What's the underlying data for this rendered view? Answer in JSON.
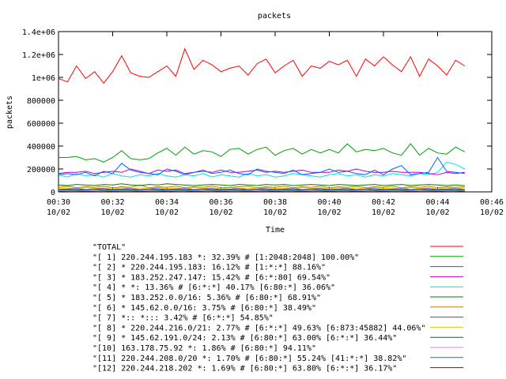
{
  "chart_data": {
    "type": "line",
    "title": "packets",
    "xlabel": "Time",
    "ylabel": "packets",
    "xlim": [
      "00:30",
      "00:46"
    ],
    "ylim": [
      0,
      1400000
    ],
    "x_ticks": [
      {
        "time": "00:30",
        "date": "10/02"
      },
      {
        "time": "00:32",
        "date": "10/02"
      },
      {
        "time": "00:34",
        "date": "10/02"
      },
      {
        "time": "00:36",
        "date": "10/02"
      },
      {
        "time": "00:38",
        "date": "10/02"
      },
      {
        "time": "00:40",
        "date": "10/02"
      },
      {
        "time": "00:42",
        "date": "10/02"
      },
      {
        "time": "00:44",
        "date": "10/02"
      },
      {
        "time": "00:46",
        "date": "10/02"
      }
    ],
    "y_ticks": [
      "0",
      "200000",
      "400000",
      "600000",
      "800000",
      "1e+06",
      "1.2e+06",
      "1.4e+06"
    ],
    "y_tick_values": [
      0,
      200000,
      400000,
      600000,
      800000,
      1000000,
      1200000,
      1400000
    ],
    "grid": false,
    "legend_position": "bottom",
    "x": [
      "00:30",
      "00:30:20",
      "00:30:40",
      "00:31",
      "00:31:20",
      "00:31:40",
      "00:32",
      "00:32:20",
      "00:32:40",
      "00:33",
      "00:33:20",
      "00:33:40",
      "00:34",
      "00:34:20",
      "00:34:40",
      "00:35",
      "00:35:20",
      "00:35:40",
      "00:36",
      "00:36:20",
      "00:36:40",
      "00:37",
      "00:37:20",
      "00:37:40",
      "00:38",
      "00:38:20",
      "00:38:40",
      "00:39",
      "00:39:20",
      "00:39:40",
      "00:40",
      "00:40:20",
      "00:40:40",
      "00:41",
      "00:41:20",
      "00:41:40",
      "00:42",
      "00:42:20",
      "00:42:40",
      "00:43",
      "00:43:20",
      "00:43:40",
      "00:44",
      "00:44:20",
      "00:44:40",
      "00:45"
    ],
    "series": [
      {
        "name": "\"TOTAL\"",
        "color": "#ff0000",
        "values": [
          990000,
          960000,
          1100000,
          990000,
          1050000,
          950000,
          1050000,
          1190000,
          1040000,
          1010000,
          1000000,
          1050000,
          1100000,
          1010000,
          1250000,
          1070000,
          1150000,
          1110000,
          1050000,
          1080000,
          1100000,
          1020000,
          1120000,
          1160000,
          1040000,
          1100000,
          1150000,
          1010000,
          1100000,
          1080000,
          1140000,
          1110000,
          1150000,
          1010000,
          1160000,
          1100000,
          1180000,
          1110000,
          1050000,
          1180000,
          1010000,
          1160000,
          1100000,
          1020000,
          1150000,
          1100000
        ]
      },
      {
        "name": "\"[ 1] 220.244.195.183 *: 32.39% # [1:2048:2048] 100.00%\"",
        "color": "#00a000",
        "values": [
          300000,
          300000,
          310000,
          280000,
          290000,
          260000,
          300000,
          360000,
          290000,
          280000,
          290000,
          340000,
          380000,
          320000,
          390000,
          330000,
          360000,
          350000,
          310000,
          370000,
          380000,
          330000,
          370000,
          390000,
          320000,
          360000,
          380000,
          330000,
          370000,
          340000,
          370000,
          340000,
          420000,
          350000,
          370000,
          360000,
          380000,
          340000,
          320000,
          420000,
          320000,
          380000,
          340000,
          330000,
          390000,
          350000
        ]
      },
      {
        "name": "\"[ 2] * 220.244.195.183: 16.12% # [1:*:*] 88.16%\"",
        "color": "#0060ff",
        "values": [
          150000,
          160000,
          150000,
          170000,
          140000,
          180000,
          160000,
          250000,
          190000,
          170000,
          160000,
          150000,
          200000,
          180000,
          150000,
          170000,
          190000,
          160000,
          170000,
          190000,
          160000,
          150000,
          200000,
          180000,
          170000,
          160000,
          190000,
          150000,
          160000,
          170000,
          200000,
          170000,
          180000,
          160000,
          150000,
          190000,
          150000,
          200000,
          230000,
          150000,
          160000,
          170000,
          300000,
          180000,
          170000,
          160000
        ]
      },
      {
        "name": "\"[ 3] * 183.252.247.147: 15.42% # [6:*:80] 69.54%\"",
        "color": "#c000c0",
        "values": [
          160000,
          170000,
          170000,
          180000,
          160000,
          170000,
          180000,
          170000,
          200000,
          180000,
          160000,
          190000,
          180000,
          190000,
          160000,
          170000,
          180000,
          170000,
          190000,
          170000,
          170000,
          180000,
          190000,
          170000,
          180000,
          170000,
          180000,
          190000,
          170000,
          170000,
          170000,
          190000,
          180000,
          200000,
          180000,
          170000,
          170000,
          180000,
          170000,
          170000,
          170000,
          160000,
          150000,
          170000,
          160000,
          170000
        ]
      },
      {
        "name": "\"[ 4] * *: 13.36% # [6:*:*] 40.17% [6:80:*] 36.06%\"",
        "color": "#00e0e0",
        "values": [
          150000,
          130000,
          160000,
          140000,
          150000,
          130000,
          160000,
          140000,
          130000,
          150000,
          140000,
          160000,
          140000,
          130000,
          150000,
          140000,
          160000,
          130000,
          150000,
          140000,
          130000,
          160000,
          140000,
          150000,
          130000,
          140000,
          160000,
          150000,
          140000,
          130000,
          150000,
          160000,
          140000,
          150000,
          130000,
          150000,
          140000,
          160000,
          150000,
          140000,
          160000,
          150000,
          170000,
          260000,
          240000,
          200000
        ]
      },
      {
        "name": "\"[ 5] * 183.252.0.0/16: 5.36% # [6:80:*] 68.91%\"",
        "color": "#008000",
        "values": [
          60000,
          55000,
          65000,
          60000,
          55000,
          65000,
          60000,
          70000,
          60000,
          55000,
          65000,
          60000,
          70000,
          65000,
          60000,
          55000,
          60000,
          65000,
          60000,
          55000,
          65000,
          60000,
          55000,
          65000,
          60000,
          65000,
          55000,
          60000,
          65000,
          60000,
          55000,
          65000,
          60000,
          55000,
          60000,
          65000,
          55000,
          60000,
          65000,
          55000,
          60000,
          65000,
          60000,
          55000,
          60000,
          55000
        ]
      },
      {
        "name": "\"[ 6] * 145.62.0.0/16: 3.75% # [6:80:*] 38.49%\"",
        "color": "#c08000",
        "values": [
          40000,
          50000,
          35000,
          45000,
          40000,
          50000,
          35000,
          45000,
          40000,
          60000,
          35000,
          45000,
          40000,
          50000,
          35000,
          45000,
          40000,
          50000,
          35000,
          40000,
          45000,
          50000,
          35000,
          45000,
          40000,
          50000,
          35000,
          45000,
          40000,
          50000,
          35000,
          45000,
          40000,
          50000,
          35000,
          45000,
          40000,
          50000,
          35000,
          45000,
          40000,
          50000,
          35000,
          45000,
          40000,
          45000
        ]
      },
      {
        "name": "\"[ 7] *:: *::: 3.42% # [6:*:*] 54.85%\"",
        "color": "#4040ff",
        "values": [
          20000,
          25000,
          30000,
          20000,
          25000,
          30000,
          20000,
          25000,
          30000,
          20000,
          25000,
          30000,
          20000,
          25000,
          30000,
          20000,
          25000,
          30000,
          20000,
          25000,
          30000,
          20000,
          25000,
          30000,
          20000,
          25000,
          30000,
          20000,
          25000,
          30000,
          20000,
          25000,
          30000,
          20000,
          25000,
          30000,
          20000,
          25000,
          30000,
          20000,
          25000,
          30000,
          20000,
          25000,
          30000,
          20000
        ]
      },
      {
        "name": "\"[ 8] * 220.244.216.0/21: 2.77% # [6:*:*] 49.63% [6:873:45882] 44.06%\"",
        "color": "#ffc000",
        "values": [
          30000,
          35000,
          25000,
          40000,
          30000,
          35000,
          25000,
          40000,
          30000,
          35000,
          25000,
          40000,
          30000,
          35000,
          25000,
          40000,
          30000,
          35000,
          25000,
          40000,
          30000,
          35000,
          25000,
          40000,
          30000,
          35000,
          25000,
          40000,
          30000,
          35000,
          25000,
          40000,
          30000,
          35000,
          25000,
          40000,
          30000,
          35000,
          25000,
          40000,
          30000,
          35000,
          25000,
          40000,
          30000,
          35000
        ]
      },
      {
        "name": "\"[ 9] * 145.62.191.0/24: 2.13% # [6:80:*] 63.00% [6:*:*] 36.44%\"",
        "color": "#006060",
        "values": [
          15000,
          20000,
          18000,
          15000,
          22000,
          18000,
          15000,
          20000,
          18000,
          15000,
          22000,
          18000,
          15000,
          20000,
          18000,
          15000,
          22000,
          18000,
          15000,
          20000,
          18000,
          15000,
          22000,
          18000,
          15000,
          20000,
          18000,
          15000,
          22000,
          18000,
          15000,
          20000,
          18000,
          15000,
          22000,
          18000,
          15000,
          20000,
          18000,
          15000,
          22000,
          18000,
          15000,
          20000,
          18000,
          15000
        ]
      },
      {
        "name": "\"[10] 163.178.75.92 *: 1.86% # [6:80:*] 94.11%\"",
        "color": "#e080e0",
        "values": [
          10000,
          12000,
          14000,
          10000,
          12000,
          14000,
          10000,
          12000,
          14000,
          10000,
          12000,
          14000,
          10000,
          12000,
          14000,
          10000,
          12000,
          14000,
          10000,
          12000,
          14000,
          10000,
          12000,
          14000,
          10000,
          12000,
          14000,
          10000,
          12000,
          14000,
          10000,
          12000,
          14000,
          10000,
          12000,
          14000,
          10000,
          12000,
          14000,
          10000,
          12000,
          14000,
          10000,
          12000,
          14000,
          10000
        ]
      },
      {
        "name": "\"[11] 220.244.208.0/20 *: 1.70% # [6:80:*] 55.24% [41:*:*] 38.82%\"",
        "color": "#406080",
        "values": [
          8000,
          10000,
          12000,
          8000,
          10000,
          12000,
          8000,
          10000,
          12000,
          8000,
          10000,
          12000,
          8000,
          10000,
          12000,
          8000,
          10000,
          12000,
          8000,
          10000,
          12000,
          8000,
          10000,
          12000,
          8000,
          10000,
          12000,
          8000,
          10000,
          12000,
          8000,
          10000,
          12000,
          8000,
          10000,
          12000,
          8000,
          10000,
          12000,
          8000,
          10000,
          12000,
          8000,
          10000,
          12000,
          8000
        ]
      },
      {
        "name": "\"[12] 220.244.218.202 *: 1.69% # [6:80:*] 63.80% [6:*:*] 36.17%\"",
        "color": "#a00000",
        "values": [
          6000,
          8000,
          9000,
          6000,
          8000,
          9000,
          6000,
          8000,
          9000,
          6000,
          8000,
          9000,
          6000,
          8000,
          9000,
          6000,
          8000,
          9000,
          6000,
          8000,
          9000,
          6000,
          8000,
          9000,
          6000,
          8000,
          9000,
          6000,
          8000,
          9000,
          6000,
          8000,
          9000,
          6000,
          8000,
          9000,
          6000,
          8000,
          9000,
          6000,
          8000,
          9000,
          6000,
          8000,
          9000,
          6000
        ]
      }
    ]
  }
}
